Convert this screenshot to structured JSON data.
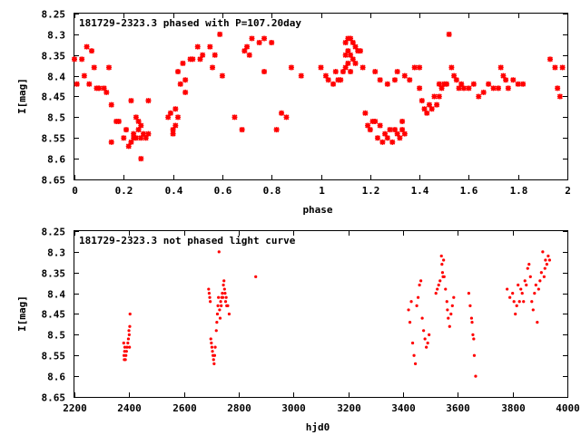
{
  "chart_data": [
    {
      "type": "scatter",
      "title": "181729-2323.3 phased with P=107.20day",
      "xlabel": "phase",
      "ylabel": "I[mag]",
      "xlim": [
        0,
        2
      ],
      "ylim": [
        8.25,
        8.65
      ],
      "y_inverted": true,
      "grid": false,
      "legend": "none",
      "xticks": [
        "0",
        "0.2",
        "0.4",
        "0.6",
        "0.8",
        "1",
        "1.2",
        "1.4",
        "1.6",
        "1.8",
        "2"
      ],
      "yticks": [
        "8.25",
        "8.3",
        "8.35",
        "8.4",
        "8.45",
        "8.5",
        "8.55",
        "8.6",
        "8.65"
      ],
      "color": "#ff0000",
      "marker": "star",
      "points": [
        [
          0.0,
          8.36
        ],
        [
          0.01,
          8.42
        ],
        [
          0.03,
          8.36
        ],
        [
          0.04,
          8.4
        ],
        [
          0.05,
          8.33
        ],
        [
          0.06,
          8.42
        ],
        [
          0.07,
          8.34
        ],
        [
          0.08,
          8.38
        ],
        [
          0.09,
          8.43
        ],
        [
          0.1,
          8.43
        ],
        [
          0.12,
          8.43
        ],
        [
          0.13,
          8.44
        ],
        [
          0.14,
          8.38
        ],
        [
          0.15,
          8.47
        ],
        [
          0.15,
          8.56
        ],
        [
          0.17,
          8.51
        ],
        [
          0.18,
          8.51
        ],
        [
          0.2,
          8.55
        ],
        [
          0.21,
          8.53
        ],
        [
          0.22,
          8.57
        ],
        [
          0.23,
          8.56
        ],
        [
          0.24,
          8.54
        ],
        [
          0.25,
          8.55
        ],
        [
          0.26,
          8.53
        ],
        [
          0.27,
          8.6
        ],
        [
          0.27,
          8.55
        ],
        [
          0.28,
          8.54
        ],
        [
          0.29,
          8.55
        ],
        [
          0.3,
          8.54
        ],
        [
          0.3,
          8.46
        ],
        [
          0.25,
          8.5
        ],
        [
          0.26,
          8.51
        ],
        [
          0.24,
          8.55
        ],
        [
          0.23,
          8.46
        ],
        [
          0.27,
          8.52
        ],
        [
          0.38,
          8.5
        ],
        [
          0.39,
          8.49
        ],
        [
          0.4,
          8.54
        ],
        [
          0.41,
          8.48
        ],
        [
          0.4,
          8.53
        ],
        [
          0.42,
          8.39
        ],
        [
          0.41,
          8.52
        ],
        [
          0.42,
          8.5
        ],
        [
          0.43,
          8.42
        ],
        [
          0.44,
          8.37
        ],
        [
          0.45,
          8.41
        ],
        [
          0.45,
          8.44
        ],
        [
          0.47,
          8.36
        ],
        [
          0.48,
          8.36
        ],
        [
          0.5,
          8.33
        ],
        [
          0.51,
          8.36
        ],
        [
          0.52,
          8.35
        ],
        [
          0.55,
          8.33
        ],
        [
          0.56,
          8.38
        ],
        [
          0.57,
          8.35
        ],
        [
          0.59,
          8.3
        ],
        [
          0.6,
          8.4
        ],
        [
          0.65,
          8.5
        ],
        [
          0.68,
          8.53
        ],
        [
          0.69,
          8.34
        ],
        [
          0.7,
          8.33
        ],
        [
          0.71,
          8.35
        ],
        [
          0.72,
          8.31
        ],
        [
          0.75,
          8.32
        ],
        [
          0.77,
          8.31
        ],
        [
          0.77,
          8.39
        ],
        [
          0.8,
          8.32
        ],
        [
          0.82,
          8.53
        ],
        [
          0.84,
          8.49
        ],
        [
          0.86,
          8.5
        ],
        [
          0.88,
          8.38
        ],
        [
          0.92,
          8.4
        ],
        [
          1.0,
          8.38
        ],
        [
          1.02,
          8.4
        ],
        [
          1.03,
          8.41
        ],
        [
          1.05,
          8.42
        ],
        [
          1.06,
          8.39
        ],
        [
          1.07,
          8.41
        ],
        [
          1.08,
          8.41
        ],
        [
          1.09,
          8.39
        ],
        [
          1.1,
          8.32
        ],
        [
          1.1,
          8.35
        ],
        [
          1.1,
          8.38
        ],
        [
          1.11,
          8.31
        ],
        [
          1.11,
          8.34
        ],
        [
          1.11,
          8.37
        ],
        [
          1.12,
          8.31
        ],
        [
          1.12,
          8.35
        ],
        [
          1.12,
          8.39
        ],
        [
          1.13,
          8.32
        ],
        [
          1.13,
          8.36
        ],
        [
          1.14,
          8.33
        ],
        [
          1.14,
          8.37
        ],
        [
          1.15,
          8.34
        ],
        [
          1.16,
          8.34
        ],
        [
          1.17,
          8.38
        ],
        [
          1.18,
          8.49
        ],
        [
          1.19,
          8.52
        ],
        [
          1.2,
          8.53
        ],
        [
          1.21,
          8.51
        ],
        [
          1.22,
          8.51
        ],
        [
          1.23,
          8.55
        ],
        [
          1.24,
          8.52
        ],
        [
          1.25,
          8.56
        ],
        [
          1.26,
          8.54
        ],
        [
          1.27,
          8.55
        ],
        [
          1.28,
          8.53
        ],
        [
          1.29,
          8.56
        ],
        [
          1.3,
          8.53
        ],
        [
          1.31,
          8.54
        ],
        [
          1.32,
          8.55
        ],
        [
          1.33,
          8.53
        ],
        [
          1.34,
          8.54
        ],
        [
          1.33,
          8.51
        ],
        [
          1.22,
          8.39
        ],
        [
          1.24,
          8.41
        ],
        [
          1.27,
          8.42
        ],
        [
          1.3,
          8.41
        ],
        [
          1.31,
          8.39
        ],
        [
          1.34,
          8.4
        ],
        [
          1.36,
          8.41
        ],
        [
          1.38,
          8.38
        ],
        [
          1.4,
          8.38
        ],
        [
          1.4,
          8.43
        ],
        [
          1.41,
          8.46
        ],
        [
          1.42,
          8.48
        ],
        [
          1.43,
          8.49
        ],
        [
          1.44,
          8.47
        ],
        [
          1.45,
          8.48
        ],
        [
          1.46,
          8.45
        ],
        [
          1.47,
          8.47
        ],
        [
          1.48,
          8.45
        ],
        [
          1.48,
          8.42
        ],
        [
          1.49,
          8.43
        ],
        [
          1.5,
          8.42
        ],
        [
          1.51,
          8.42
        ],
        [
          1.52,
          8.3
        ],
        [
          1.53,
          8.38
        ],
        [
          1.54,
          8.4
        ],
        [
          1.55,
          8.41
        ],
        [
          1.56,
          8.43
        ],
        [
          1.57,
          8.42
        ],
        [
          1.58,
          8.43
        ],
        [
          1.6,
          8.43
        ],
        [
          1.62,
          8.42
        ],
        [
          1.64,
          8.45
        ],
        [
          1.66,
          8.44
        ],
        [
          1.68,
          8.42
        ],
        [
          1.7,
          8.43
        ],
        [
          1.72,
          8.43
        ],
        [
          1.73,
          8.38
        ],
        [
          1.74,
          8.4
        ],
        [
          1.75,
          8.41
        ],
        [
          1.76,
          8.43
        ],
        [
          1.78,
          8.41
        ],
        [
          1.8,
          8.42
        ],
        [
          1.82,
          8.42
        ],
        [
          1.93,
          8.36
        ],
        [
          1.95,
          8.38
        ],
        [
          1.96,
          8.43
        ],
        [
          1.97,
          8.45
        ],
        [
          1.98,
          8.38
        ]
      ]
    },
    {
      "type": "scatter",
      "title": "181729-2323.3 not phased light curve",
      "xlabel": "hjd0",
      "ylabel": "I[mag]",
      "xlim": [
        2200,
        4000
      ],
      "ylim": [
        8.25,
        8.65
      ],
      "y_inverted": true,
      "grid": false,
      "legend": "none",
      "xticks": [
        "2200",
        "2400",
        "2600",
        "2800",
        "3000",
        "3200",
        "3400",
        "3600",
        "3800",
        "4000"
      ],
      "yticks": [
        "8.25",
        "8.3",
        "8.35",
        "8.4",
        "8.45",
        "8.5",
        "8.55",
        "8.6",
        "8.65"
      ],
      "color": "#ff0000",
      "marker": "dot",
      "points": [
        [
          2380,
          8.52
        ],
        [
          2381,
          8.55
        ],
        [
          2382,
          8.56
        ],
        [
          2383,
          8.54
        ],
        [
          2384,
          8.53
        ],
        [
          2386,
          8.56
        ],
        [
          2388,
          8.55
        ],
        [
          2390,
          8.54
        ],
        [
          2392,
          8.53
        ],
        [
          2395,
          8.52
        ],
        [
          2397,
          8.51
        ],
        [
          2399,
          8.49
        ],
        [
          2400,
          8.5
        ],
        [
          2401,
          8.53
        ],
        [
          2402,
          8.48
        ],
        [
          2403,
          8.45
        ],
        [
          2690,
          8.39
        ],
        [
          2692,
          8.4
        ],
        [
          2694,
          8.41
        ],
        [
          2696,
          8.42
        ],
        [
          2698,
          8.51
        ],
        [
          2700,
          8.52
        ],
        [
          2702,
          8.53
        ],
        [
          2704,
          8.54
        ],
        [
          2706,
          8.55
        ],
        [
          2708,
          8.56
        ],
        [
          2710,
          8.57
        ],
        [
          2712,
          8.55
        ],
        [
          2714,
          8.53
        ],
        [
          2718,
          8.49
        ],
        [
          2720,
          8.47
        ],
        [
          2722,
          8.45
        ],
        [
          2724,
          8.43
        ],
        [
          2726,
          8.41
        ],
        [
          2728,
          8.3
        ],
        [
          2730,
          8.44
        ],
        [
          2732,
          8.46
        ],
        [
          2734,
          8.42
        ],
        [
          2736,
          8.43
        ],
        [
          2738,
          8.41
        ],
        [
          2740,
          8.4
        ],
        [
          2742,
          8.41
        ],
        [
          2744,
          8.38
        ],
        [
          2746,
          8.37
        ],
        [
          2748,
          8.39
        ],
        [
          2750,
          8.4
        ],
        [
          2752,
          8.42
        ],
        [
          2754,
          8.41
        ],
        [
          2756,
          8.43
        ],
        [
          2760,
          8.43
        ],
        [
          2765,
          8.45
        ],
        [
          2862,
          8.36
        ],
        [
          3420,
          8.44
        ],
        [
          3425,
          8.47
        ],
        [
          3430,
          8.42
        ],
        [
          3435,
          8.52
        ],
        [
          3440,
          8.55
        ],
        [
          3445,
          8.57
        ],
        [
          3450,
          8.43
        ],
        [
          3455,
          8.41
        ],
        [
          3460,
          8.38
        ],
        [
          3465,
          8.37
        ],
        [
          3470,
          8.46
        ],
        [
          3475,
          8.49
        ],
        [
          3480,
          8.51
        ],
        [
          3485,
          8.53
        ],
        [
          3490,
          8.52
        ],
        [
          3495,
          8.5
        ],
        [
          3520,
          8.4
        ],
        [
          3525,
          8.39
        ],
        [
          3530,
          8.38
        ],
        [
          3535,
          8.37
        ],
        [
          3540,
          8.31
        ],
        [
          3542,
          8.33
        ],
        [
          3544,
          8.35
        ],
        [
          3546,
          8.36
        ],
        [
          3548,
          8.32
        ],
        [
          3550,
          8.36
        ],
        [
          3555,
          8.39
        ],
        [
          3560,
          8.42
        ],
        [
          3562,
          8.44
        ],
        [
          3565,
          8.46
        ],
        [
          3570,
          8.48
        ],
        [
          3575,
          8.45
        ],
        [
          3580,
          8.43
        ],
        [
          3585,
          8.41
        ],
        [
          3640,
          8.4
        ],
        [
          3645,
          8.43
        ],
        [
          3650,
          8.46
        ],
        [
          3652,
          8.47
        ],
        [
          3655,
          8.5
        ],
        [
          3658,
          8.51
        ],
        [
          3660,
          8.55
        ],
        [
          3665,
          8.6
        ],
        [
          3780,
          8.39
        ],
        [
          3790,
          8.41
        ],
        [
          3800,
          8.4
        ],
        [
          3805,
          8.42
        ],
        [
          3810,
          8.45
        ],
        [
          3815,
          8.43
        ],
        [
          3820,
          8.38
        ],
        [
          3825,
          8.42
        ],
        [
          3830,
          8.39
        ],
        [
          3835,
          8.4
        ],
        [
          3840,
          8.42
        ],
        [
          3845,
          8.37
        ],
        [
          3850,
          8.38
        ],
        [
          3855,
          8.34
        ],
        [
          3860,
          8.33
        ],
        [
          3865,
          8.36
        ],
        [
          3870,
          8.42
        ],
        [
          3875,
          8.44
        ],
        [
          3880,
          8.4
        ],
        [
          3885,
          8.38
        ],
        [
          3890,
          8.47
        ],
        [
          3895,
          8.39
        ],
        [
          3900,
          8.37
        ],
        [
          3905,
          8.35
        ],
        [
          3910,
          8.3
        ],
        [
          3915,
          8.36
        ],
        [
          3918,
          8.34
        ],
        [
          3920,
          8.32
        ],
        [
          3925,
          8.33
        ],
        [
          3930,
          8.31
        ],
        [
          3935,
          8.32
        ]
      ]
    }
  ]
}
